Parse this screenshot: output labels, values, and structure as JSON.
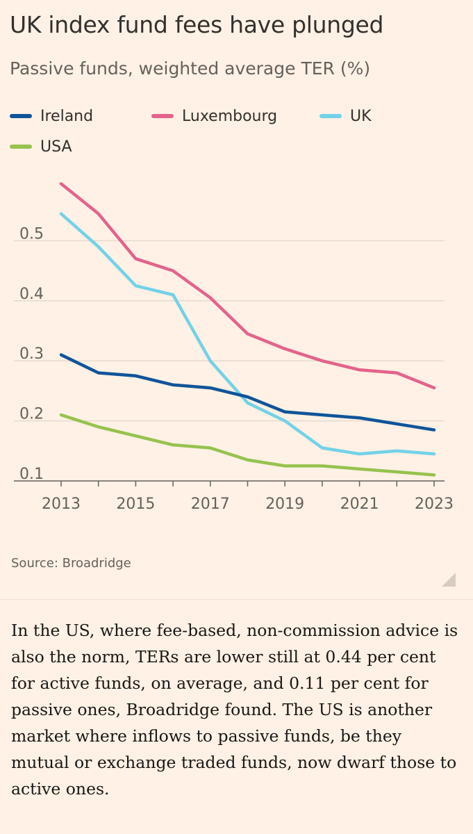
{
  "title": "UK index fund fees have plunged",
  "subtitle": "Passive funds, weighted average TER (%)",
  "colors": {
    "Ireland": "#0f5499",
    "Luxembourg": "#e3638c",
    "UK": "#72d2e8",
    "USA": "#96c24e",
    "grid": "#e6d9ce",
    "axis": "#66605c"
  },
  "source": "Source: Broadridge",
  "article_text": "In the US, where fee-based, non-commission advice is also the norm, TERs are lower still at 0.44 per cent for active funds, on average, and 0.11 per cent for passive ones, Broadridge found. The US is another market where inflows to passive funds, be they mutual or exchange traded funds, now dwarf those to active ones.",
  "chart_data": {
    "type": "line",
    "title": "UK index fund fees have plunged",
    "subtitle": "Passive funds, weighted average TER (%)",
    "x": [
      2013,
      2014,
      2015,
      2016,
      2017,
      2018,
      2019,
      2020,
      2021,
      2022,
      2023
    ],
    "x_ticks": [
      "2013",
      "2015",
      "2017",
      "2019",
      "2021",
      "2023"
    ],
    "y_ticks": [
      "0.1",
      "0.2",
      "0.3",
      "0.4",
      "0.5"
    ],
    "ylim": [
      0.1,
      0.6
    ],
    "grid": true,
    "legend": "top",
    "series": [
      {
        "name": "Ireland",
        "values": [
          0.31,
          0.28,
          0.275,
          0.26,
          0.255,
          0.24,
          0.215,
          0.21,
          0.205,
          0.195,
          0.185
        ]
      },
      {
        "name": "Luxembourg",
        "values": [
          0.595,
          0.545,
          0.47,
          0.45,
          0.405,
          0.345,
          0.32,
          0.3,
          0.285,
          0.28,
          0.255
        ]
      },
      {
        "name": "UK",
        "values": [
          0.545,
          0.49,
          0.425,
          0.41,
          0.3,
          0.23,
          0.2,
          0.155,
          0.145,
          0.15,
          0.145
        ]
      },
      {
        "name": "USA",
        "values": [
          0.21,
          0.19,
          0.175,
          0.16,
          0.155,
          0.135,
          0.125,
          0.125,
          0.12,
          0.115,
          0.11
        ]
      }
    ]
  }
}
